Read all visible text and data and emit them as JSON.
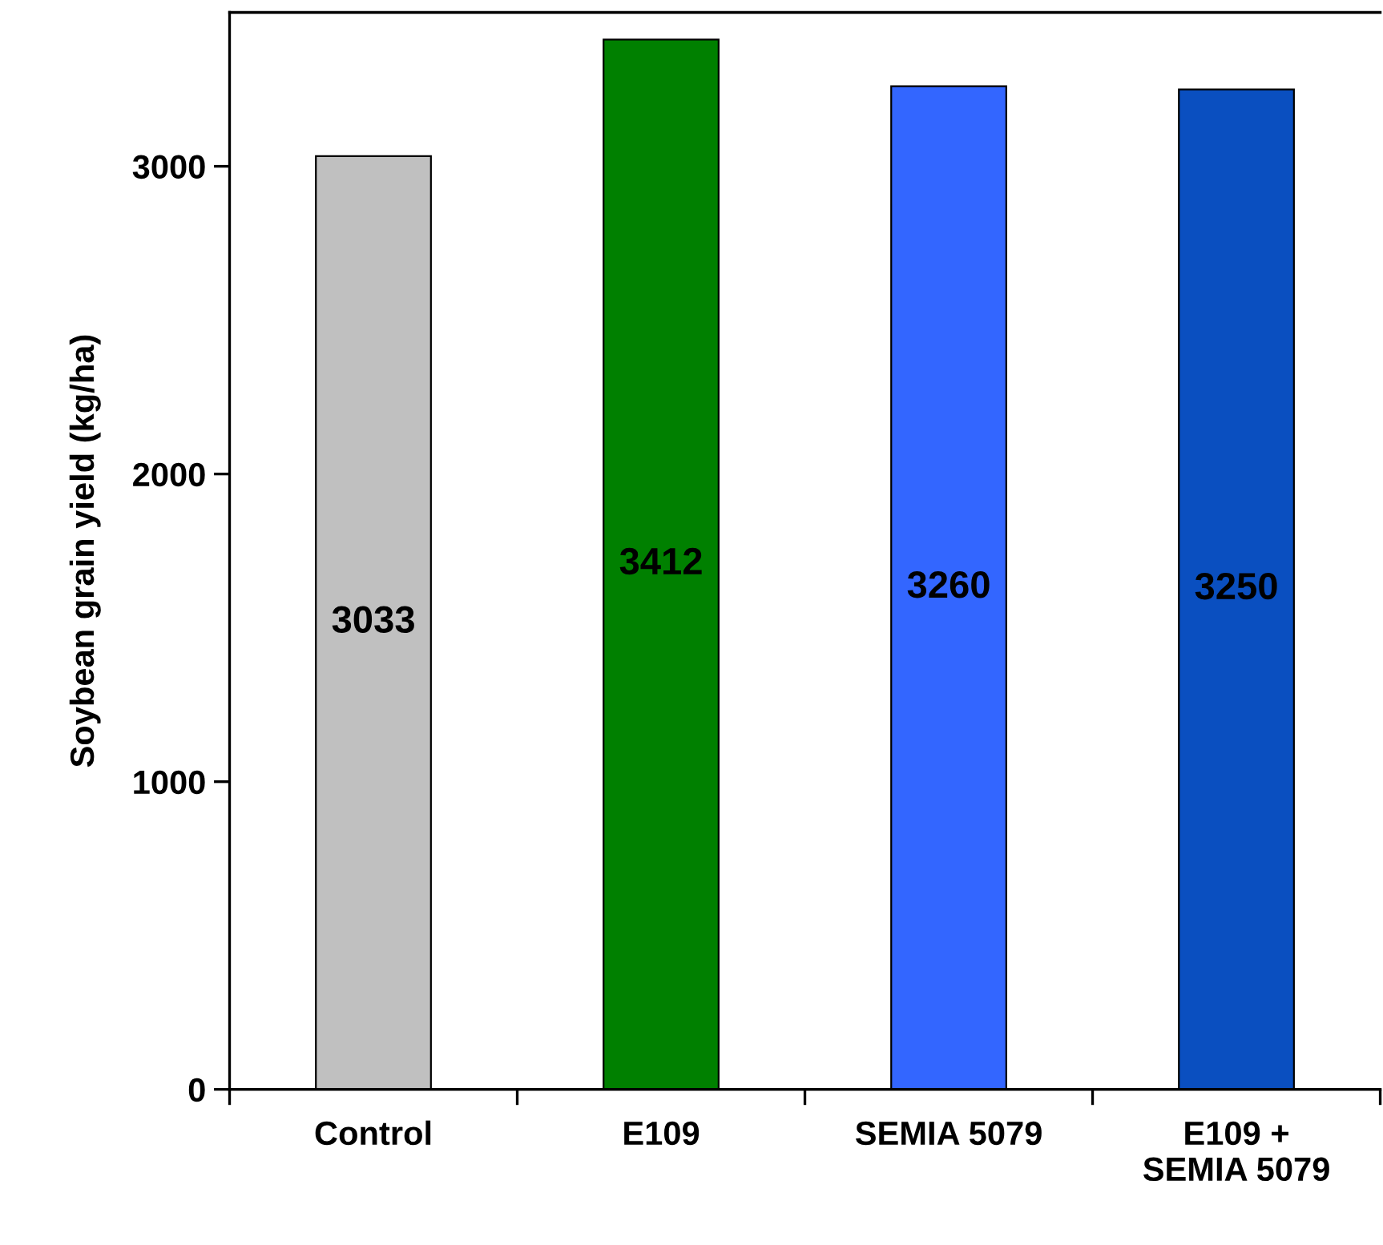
{
  "chart_data": {
    "type": "bar",
    "ylabel": "Soybean grain yield (kg/ha)",
    "categories": [
      "Control",
      "E109",
      "SEMIA 5079",
      "E109 +\nSEMIA 5079"
    ],
    "values": [
      3033,
      3412,
      3260,
      3250
    ],
    "colors": [
      "#c0c0c0",
      "#008000",
      "#3366ff",
      "#0a4fc0"
    ],
    "ylim": [
      0,
      3500
    ],
    "yticks": [
      0,
      1000,
      2000,
      3000
    ],
    "grid": false,
    "legend": false,
    "data_labels": true
  }
}
